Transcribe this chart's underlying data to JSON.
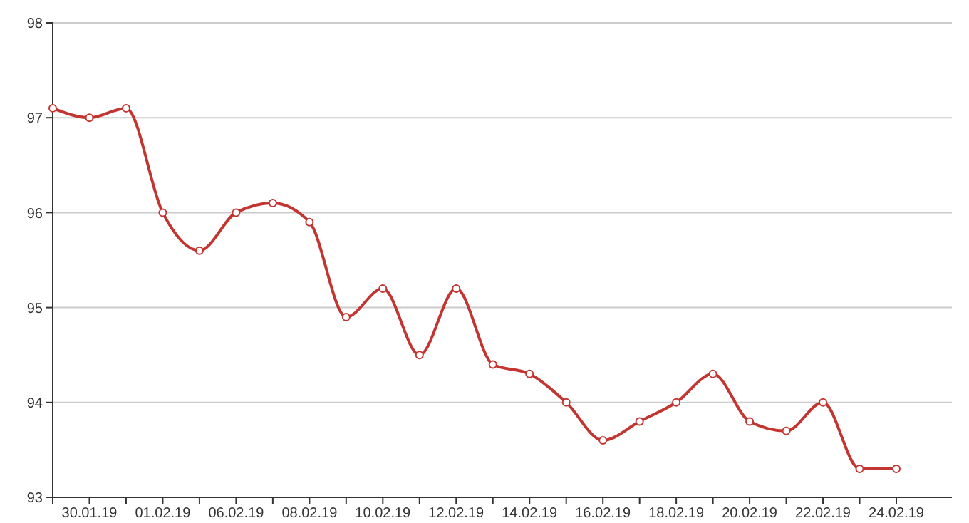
{
  "chart_data": {
    "type": "line",
    "categories": [
      null,
      "30.01.19",
      null,
      "01.02.19",
      null,
      "06.02.19",
      null,
      "08.02.19",
      null,
      "10.02.19",
      null,
      "12.02.19",
      null,
      "14.02.19",
      null,
      "16.02.19",
      null,
      "18.02.19",
      null,
      "20.02.19",
      null,
      "22.02.19",
      null,
      "24.02.19"
    ],
    "series": [
      {
        "color": "#c23531",
        "values": [
          97.1,
          97.0,
          97.1,
          96.0,
          95.6,
          96.0,
          96.1,
          95.9,
          94.9,
          95.2,
          94.5,
          95.2,
          94.4,
          94.3,
          94.0,
          93.6,
          93.8,
          94.0,
          94.3,
          93.8,
          93.7,
          94.0,
          93.3,
          93.3
        ]
      }
    ],
    "ylim": [
      93,
      98
    ],
    "yticks": [
      93,
      94,
      95,
      96,
      97,
      98
    ],
    "grid": "y",
    "marker": "circle",
    "line_style": "solid",
    "legend": false
  }
}
